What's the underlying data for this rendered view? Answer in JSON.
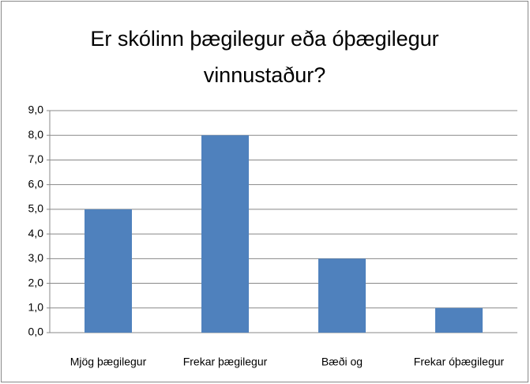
{
  "chart_data": {
    "type": "bar",
    "title": "Er skólinn þægilegur eða óþægilegur vinnustaður?",
    "categories": [
      "Mjög þægilegur",
      "Frekar þægilegur",
      "Bæði og",
      "Frekar óþægilegur"
    ],
    "values": [
      5,
      8,
      3,
      1
    ],
    "color": "#4f81bd",
    "ylim": [
      0,
      9
    ],
    "yticks": [
      {
        "value": 0,
        "label": "0,0"
      },
      {
        "value": 1,
        "label": "1,0"
      },
      {
        "value": 2,
        "label": "2,0"
      },
      {
        "value": 3,
        "label": "3,0"
      },
      {
        "value": 4,
        "label": "4,0"
      },
      {
        "value": 5,
        "label": "5,0"
      },
      {
        "value": 6,
        "label": "6,0"
      },
      {
        "value": 7,
        "label": "7,0"
      },
      {
        "value": 8,
        "label": "8,0"
      },
      {
        "value": 9,
        "label": "9,0"
      }
    ],
    "grid": true
  }
}
